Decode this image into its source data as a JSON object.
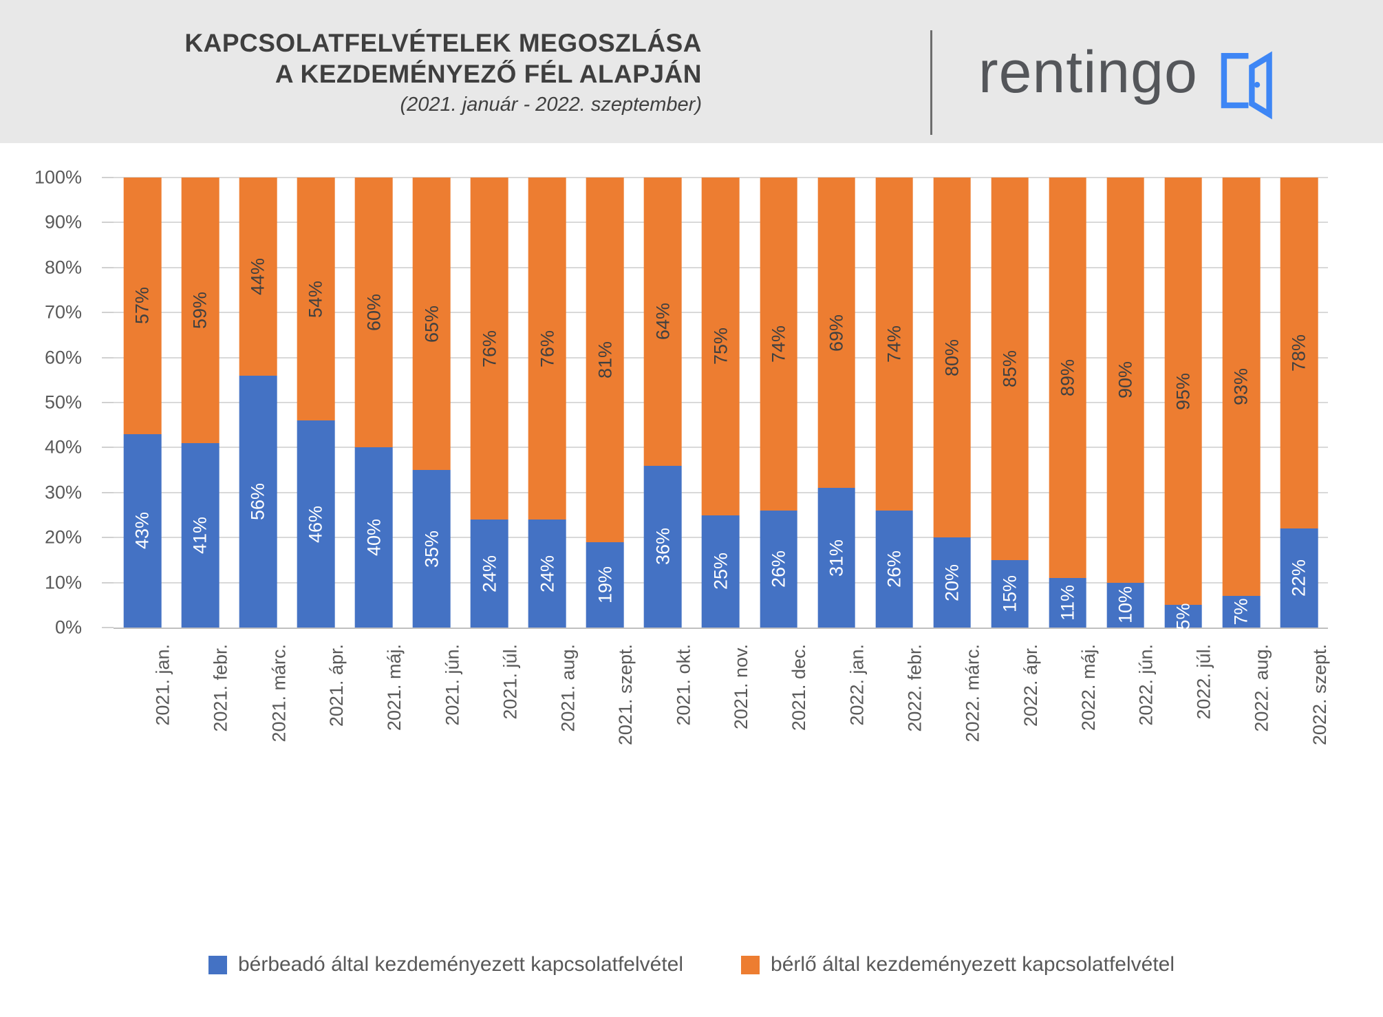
{
  "header": {
    "title_line1": "KAPCSOLATFELVÉTELEK MEGOSZLÁSA",
    "title_line2": "A KEZDEMÉNYEZŐ FÉL ALAPJÁN",
    "subtitle": "(2021. január - 2022. szeptember)",
    "logo_text": "rentingo"
  },
  "colors": {
    "landlord_blue": "#4472C4",
    "tenant_orange": "#ED7D31",
    "header_background": "#E8E8E8",
    "gridline": "#D9D9D9",
    "axis_text": "#595959",
    "title_text": "#3F3F3F",
    "logo_gray": "#54565A",
    "logo_icon_blue": "#3E86F5"
  },
  "chart_data": {
    "type": "bar",
    "stacked": true,
    "stacking": "percent",
    "title": "KAPCSOLATFELVÉTELEK MEGOSZLÁSA A KEZDEMÉNYEZŐ FÉL ALAPJÁN",
    "subtitle": "(2021. január - 2022. szeptember)",
    "categories": [
      "2021. jan.",
      "2021. febr.",
      "2021. márc.",
      "2021. ápr.",
      "2021. máj.",
      "2021. jún.",
      "2021. júl.",
      "2021. aug.",
      "2021. szept.",
      "2021. okt.",
      "2021. nov.",
      "2021. dec.",
      "2022. jan.",
      "2022. febr.",
      "2022. márc.",
      "2022. ápr.",
      "2022. máj.",
      "2022. jún.",
      "2022. júl.",
      "2022. aug.",
      "2022. szept."
    ],
    "series": [
      {
        "name": "bérbeadó által kezdeményezett kapcsolatfelvétel",
        "color": "#4472C4",
        "values": [
          43,
          41,
          56,
          46,
          40,
          35,
          24,
          24,
          19,
          36,
          25,
          26,
          31,
          26,
          20,
          15,
          11,
          10,
          5,
          7,
          22
        ]
      },
      {
        "name": "bérlő által kezdeményezett kapcsolatfelvétel",
        "color": "#ED7D31",
        "values": [
          57,
          59,
          44,
          54,
          60,
          65,
          76,
          76,
          81,
          64,
          75,
          74,
          69,
          74,
          80,
          85,
          89,
          90,
          95,
          93,
          78
        ]
      }
    ],
    "data_label_suffix": "%",
    "y_axis": {
      "min": 0,
      "max": 100,
      "step": 10,
      "tick_labels": [
        "0%",
        "10%",
        "20%",
        "30%",
        "40%",
        "50%",
        "60%",
        "70%",
        "80%",
        "90%",
        "100%"
      ]
    },
    "grid": true,
    "legend_position": "bottom"
  }
}
